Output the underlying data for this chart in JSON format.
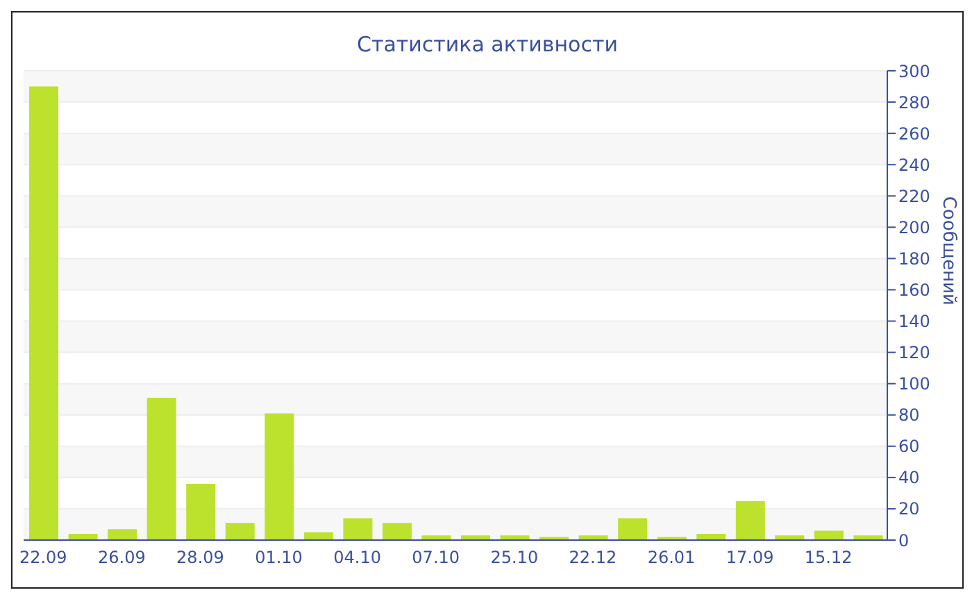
{
  "chart_data": {
    "type": "bar",
    "title": "Статистика активности",
    "ylabel": "Сообщений",
    "categories": [
      "22.09",
      null,
      "26.09",
      null,
      "28.09",
      null,
      "01.10",
      null,
      "04.10",
      null,
      "07.10",
      null,
      "25.10",
      null,
      "22.12",
      null,
      "26.01",
      null,
      "17.09",
      null,
      "15.12",
      null
    ],
    "values": [
      290,
      4,
      7,
      91,
      36,
      11,
      81,
      5,
      14,
      11,
      3,
      3,
      3,
      2,
      3,
      14,
      2,
      4,
      25,
      3,
      6,
      3
    ],
    "color": "#bde22e",
    "ylim": [
      0,
      300
    ],
    "yticks": [
      0,
      20,
      40,
      60,
      80,
      100,
      120,
      140,
      160,
      180,
      200,
      220,
      240,
      260,
      280,
      300
    ],
    "grid": "y"
  }
}
